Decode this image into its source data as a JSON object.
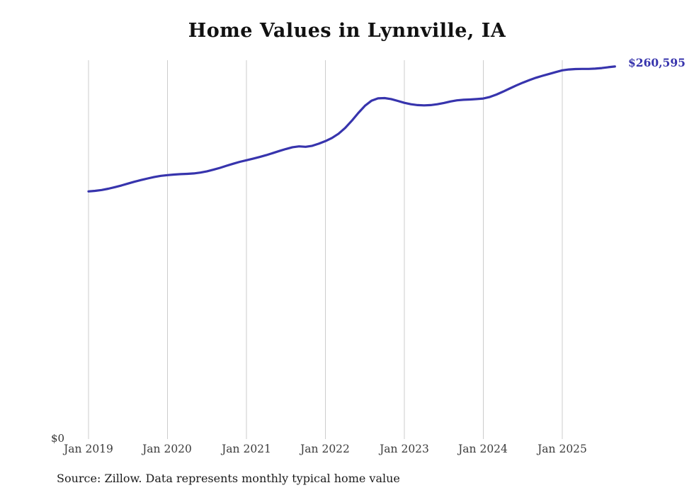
{
  "title": "Home Values in Lynnville, IA",
  "y_zero_label": "$0",
  "end_label": "$260,595",
  "source_note": "Source: Zillow. Data represents monthly typical home value",
  "colors": {
    "line": "#3734ad",
    "grid": "#cccccc",
    "tick_text": "#3d3d3d",
    "title_text": "#111111"
  },
  "chart_data": {
    "type": "line",
    "title": "Home Values in Lynnville, IA",
    "xlabel": "",
    "ylabel": "",
    "ylim": [
      0,
      265000
    ],
    "grid": "vertical-only",
    "legend": false,
    "x_monthly_start": "2019-01",
    "x_monthly_end": "2025-09",
    "x_tick_labels": [
      "Jan 2019",
      "Jan 2020",
      "Jan 2021",
      "Jan 2022",
      "Jan 2023",
      "Jan 2024",
      "Jan 2025"
    ],
    "x_tick_months": [
      0,
      12,
      24,
      36,
      48,
      60,
      72
    ],
    "series_name": "Typical home value ($)",
    "values": [
      173200,
      173600,
      174200,
      175100,
      176200,
      177400,
      178700,
      180000,
      181200,
      182300,
      183300,
      184100,
      184600,
      185000,
      185300,
      185500,
      185800,
      186400,
      187300,
      188400,
      189700,
      191200,
      192600,
      193900,
      195000,
      196100,
      197300,
      198600,
      200000,
      201500,
      202900,
      204100,
      204700,
      204400,
      205100,
      206600,
      208400,
      210600,
      213600,
      217600,
      222600,
      228100,
      233100,
      236600,
      238300,
      238500,
      237800,
      236500,
      235200,
      234200,
      233600,
      233400,
      233600,
      234200,
      235100,
      236100,
      236900,
      237300,
      237500,
      237800,
      238200,
      239300,
      241000,
      243000,
      245200,
      247300,
      249300,
      251100,
      252700,
      254100,
      255400,
      256700,
      257900,
      258500,
      258800,
      258900,
      258900,
      259100,
      259500,
      260100,
      260595
    ],
    "latest_value": 260595,
    "latest_value_label": "$260,595"
  }
}
